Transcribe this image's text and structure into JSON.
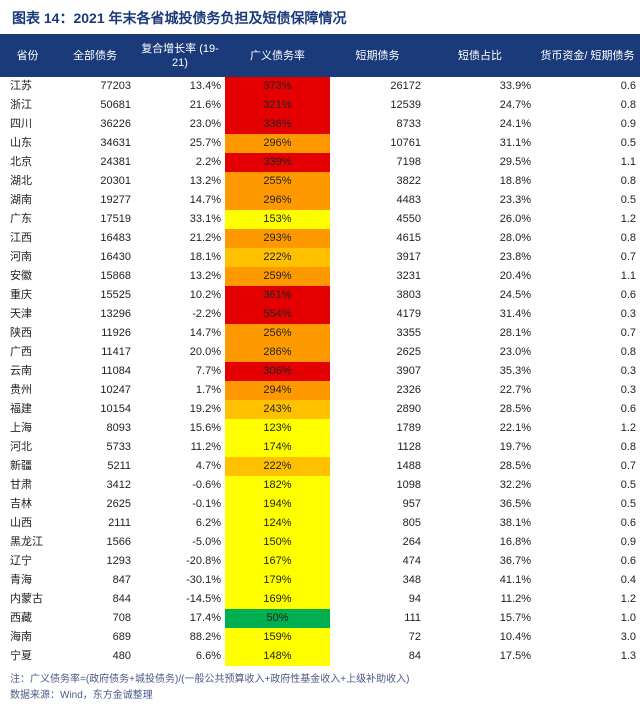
{
  "title": "图表 14：2021 年末各省城投债务负担及短债保障情况",
  "columns": [
    "省份",
    "全部债务",
    "复合增长率\n(19-21)",
    "广义债务率",
    "短期债务",
    "短债占比",
    "货币资金/\n短期债务"
  ],
  "note": "注：广义债务率=(政府债务+城投债务)/(一般公共预算收入+政府性基金收入+上级补助收入)",
  "source": "数据来源：Wind，东方金诚整理",
  "palette": {
    "header_bg": "#1a3a7a",
    "header_text": "#ffffff",
    "text": "#222222",
    "note_text": "#4a5a8a",
    "rule": "#1a3a7a",
    "heat_red": "#e40000",
    "heat_orange": "#ff9900",
    "heat_gold": "#ffc000",
    "heat_yellow": "#ffff00",
    "heat_green": "#00b050"
  },
  "ratio_heat_rules": [
    {
      "min": 300,
      "color": "#e40000"
    },
    {
      "min": 255,
      "color": "#ff9900"
    },
    {
      "min": 200,
      "color": "#ffc000"
    },
    {
      "min": 100,
      "color": "#ffff00"
    },
    {
      "min": 0,
      "color": "#00b050"
    }
  ],
  "rows": [
    {
      "prov": "江苏",
      "debt": 77203,
      "cagr": 13.4,
      "ratio": 373,
      "sd": 26172,
      "sdpct": 33.9,
      "cash": 0.6
    },
    {
      "prov": "浙江",
      "debt": 50681,
      "cagr": 21.6,
      "ratio": 321,
      "sd": 12539,
      "sdpct": 24.7,
      "cash": 0.8
    },
    {
      "prov": "四川",
      "debt": 36226,
      "cagr": 23.0,
      "ratio": 336,
      "sd": 8733,
      "sdpct": 24.1,
      "cash": 0.9
    },
    {
      "prov": "山东",
      "debt": 34631,
      "cagr": 25.7,
      "ratio": 296,
      "sd": 10761,
      "sdpct": 31.1,
      "cash": 0.5
    },
    {
      "prov": "北京",
      "debt": 24381,
      "cagr": 2.2,
      "ratio": 339,
      "sd": 7198,
      "sdpct": 29.5,
      "cash": 1.1
    },
    {
      "prov": "湖北",
      "debt": 20301,
      "cagr": 13.2,
      "ratio": 255,
      "sd": 3822,
      "sdpct": 18.8,
      "cash": 0.8
    },
    {
      "prov": "湖南",
      "debt": 19277,
      "cagr": 14.7,
      "ratio": 296,
      "sd": 4483,
      "sdpct": 23.3,
      "cash": 0.5
    },
    {
      "prov": "广东",
      "debt": 17519,
      "cagr": 33.1,
      "ratio": 153,
      "sd": 4550,
      "sdpct": 26.0,
      "cash": 1.2
    },
    {
      "prov": "江西",
      "debt": 16483,
      "cagr": 21.2,
      "ratio": 293,
      "sd": 4615,
      "sdpct": 28.0,
      "cash": 0.8
    },
    {
      "prov": "河南",
      "debt": 16430,
      "cagr": 18.1,
      "ratio": 222,
      "sd": 3917,
      "sdpct": 23.8,
      "cash": 0.7
    },
    {
      "prov": "安徽",
      "debt": 15868,
      "cagr": 13.2,
      "ratio": 259,
      "sd": 3231,
      "sdpct": 20.4,
      "cash": 1.1
    },
    {
      "prov": "重庆",
      "debt": 15525,
      "cagr": 10.2,
      "ratio": 361,
      "sd": 3803,
      "sdpct": 24.5,
      "cash": 0.6
    },
    {
      "prov": "天津",
      "debt": 13296,
      "cagr": -2.2,
      "ratio": 554,
      "sd": 4179,
      "sdpct": 31.4,
      "cash": 0.3
    },
    {
      "prov": "陕西",
      "debt": 11926,
      "cagr": 14.7,
      "ratio": 256,
      "sd": 3355,
      "sdpct": 28.1,
      "cash": 0.7
    },
    {
      "prov": "广西",
      "debt": 11417,
      "cagr": 20.0,
      "ratio": 286,
      "sd": 2625,
      "sdpct": 23.0,
      "cash": 0.8
    },
    {
      "prov": "云南",
      "debt": 11084,
      "cagr": 7.7,
      "ratio": 306,
      "sd": 3907,
      "sdpct": 35.3,
      "cash": 0.3
    },
    {
      "prov": "贵州",
      "debt": 10247,
      "cagr": 1.7,
      "ratio": 294,
      "sd": 2326,
      "sdpct": 22.7,
      "cash": 0.3
    },
    {
      "prov": "福建",
      "debt": 10154,
      "cagr": 19.2,
      "ratio": 243,
      "sd": 2890,
      "sdpct": 28.5,
      "cash": 0.6
    },
    {
      "prov": "上海",
      "debt": 8093,
      "cagr": 15.6,
      "ratio": 123,
      "sd": 1789,
      "sdpct": 22.1,
      "cash": 1.2
    },
    {
      "prov": "河北",
      "debt": 5733,
      "cagr": 11.2,
      "ratio": 174,
      "sd": 1128,
      "sdpct": 19.7,
      "cash": 0.8
    },
    {
      "prov": "新疆",
      "debt": 5211,
      "cagr": 4.7,
      "ratio": 222,
      "sd": 1488,
      "sdpct": 28.5,
      "cash": 0.7
    },
    {
      "prov": "甘肃",
      "debt": 3412,
      "cagr": -0.6,
      "ratio": 182,
      "sd": 1098,
      "sdpct": 32.2,
      "cash": 0.5
    },
    {
      "prov": "吉林",
      "debt": 2625,
      "cagr": -0.1,
      "ratio": 194,
      "sd": 957,
      "sdpct": 36.5,
      "cash": 0.5
    },
    {
      "prov": "山西",
      "debt": 2111,
      "cagr": 6.2,
      "ratio": 124,
      "sd": 805,
      "sdpct": 38.1,
      "cash": 0.6
    },
    {
      "prov": "黑龙江",
      "debt": 1566,
      "cagr": -5.0,
      "ratio": 150,
      "sd": 264,
      "sdpct": 16.8,
      "cash": 0.9
    },
    {
      "prov": "辽宁",
      "debt": 1293,
      "cagr": -20.8,
      "ratio": 167,
      "sd": 474,
      "sdpct": 36.7,
      "cash": 0.6
    },
    {
      "prov": "青海",
      "debt": 847,
      "cagr": -30.1,
      "ratio": 179,
      "sd": 348,
      "sdpct": 41.1,
      "cash": 0.4
    },
    {
      "prov": "内蒙古",
      "debt": 844,
      "cagr": -14.5,
      "ratio": 169,
      "sd": 94,
      "sdpct": 11.2,
      "cash": 1.2
    },
    {
      "prov": "西藏",
      "debt": 708,
      "cagr": 17.4,
      "ratio": 50,
      "sd": 111,
      "sdpct": 15.7,
      "cash": 1.0
    },
    {
      "prov": "海南",
      "debt": 689,
      "cagr": 88.2,
      "ratio": 159,
      "sd": 72,
      "sdpct": 10.4,
      "cash": 3.0
    },
    {
      "prov": "宁夏",
      "debt": 480,
      "cagr": 6.6,
      "ratio": 148,
      "sd": 84,
      "sdpct": 17.5,
      "cash": 1.3
    }
  ]
}
